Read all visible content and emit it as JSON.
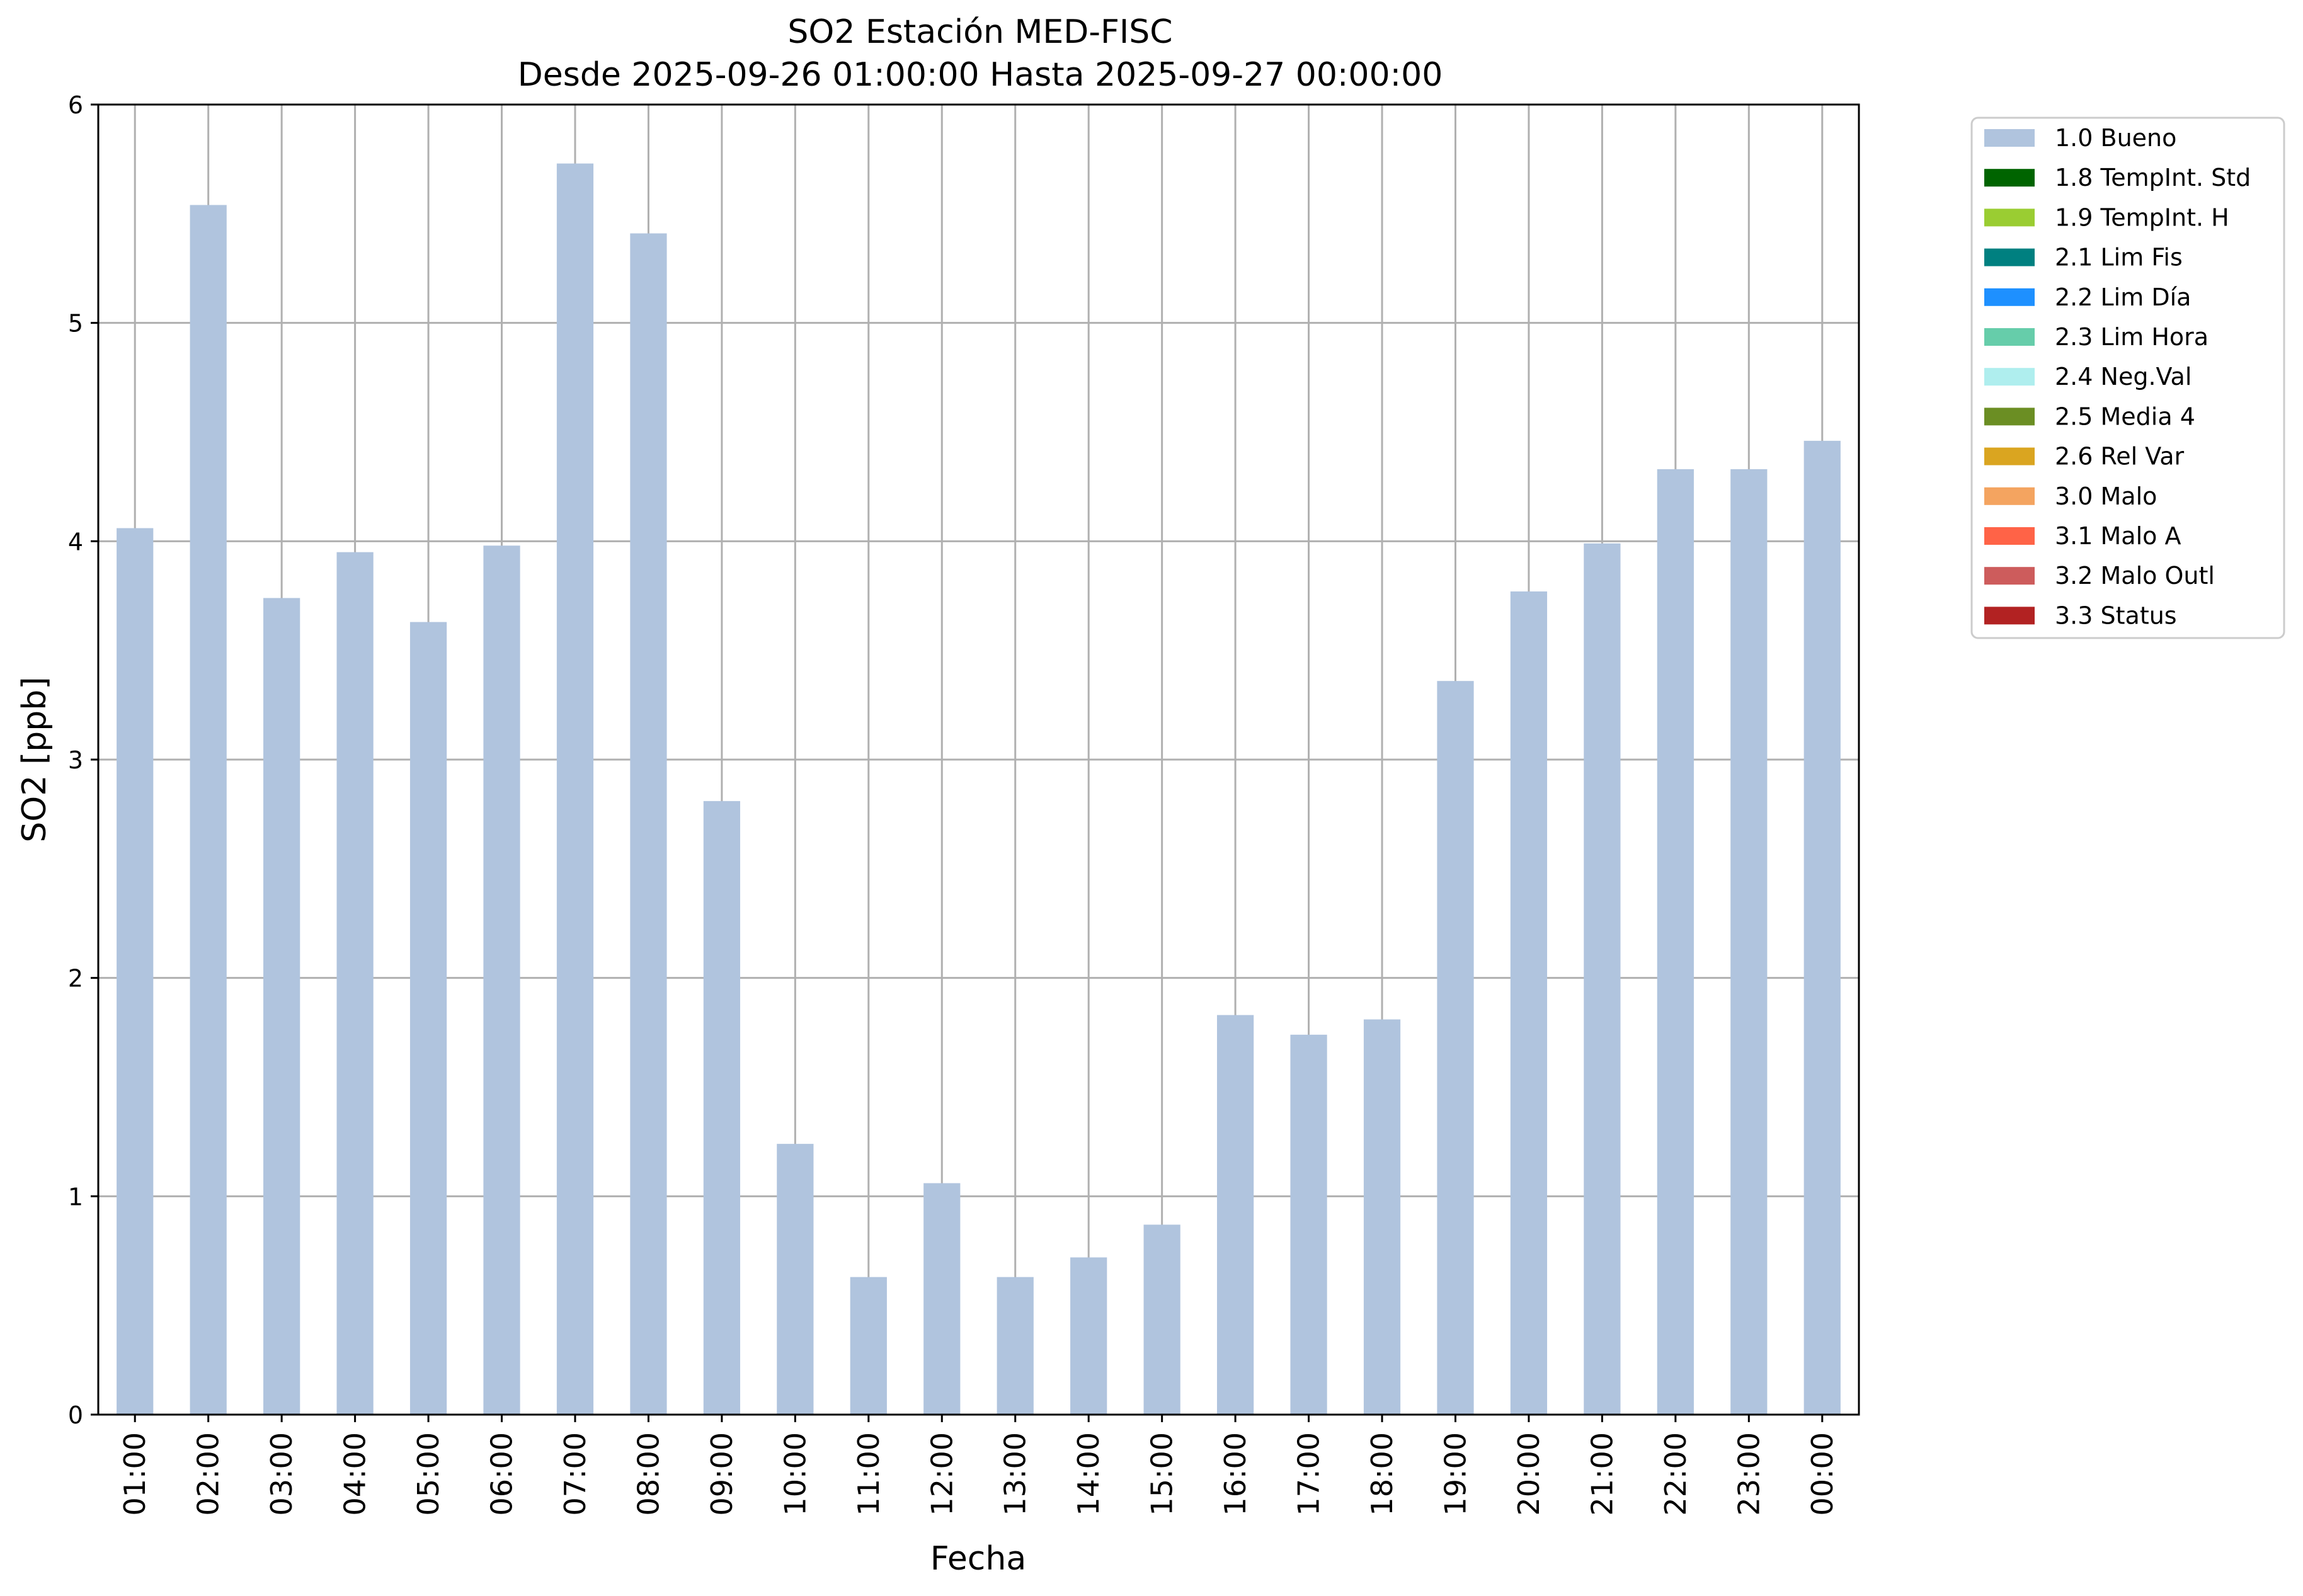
{
  "chart_data": {
    "type": "bar",
    "title": "SO2 Estación MED-FISC",
    "subtitle": "Desde 2025-09-26 01:00:00 Hasta 2025-09-27 00:00:00",
    "xlabel": "Fecha",
    "ylabel": "SO2 [ppb]",
    "ylim": [
      0,
      6
    ],
    "yticks": [
      "0",
      "1",
      "2",
      "3",
      "4",
      "5",
      "6"
    ],
    "grid": true,
    "legend_position": "outside top-right",
    "categories": [
      "01:00",
      "02:00",
      "03:00",
      "04:00",
      "05:00",
      "06:00",
      "07:00",
      "08:00",
      "09:00",
      "10:00",
      "11:00",
      "12:00",
      "13:00",
      "14:00",
      "15:00",
      "16:00",
      "17:00",
      "18:00",
      "19:00",
      "20:00",
      "21:00",
      "22:00",
      "23:00",
      "00:00"
    ],
    "series": [
      {
        "name": "1.0 Bueno",
        "color": "#b0c4de",
        "values": [
          4.06,
          5.54,
          3.74,
          3.95,
          3.63,
          3.98,
          5.73,
          5.41,
          2.81,
          1.24,
          0.63,
          1.06,
          0.63,
          0.72,
          0.87,
          1.83,
          1.74,
          1.81,
          3.36,
          3.77,
          3.99,
          4.33,
          4.33,
          4.46
        ]
      }
    ],
    "legend": [
      {
        "label": "1.0 Bueno",
        "color": "#b0c4de"
      },
      {
        "label": "1.8 TempInt. Std",
        "color": "#006400"
      },
      {
        "label": "1.9 TempInt. H",
        "color": "#9acd32"
      },
      {
        "label": "2.1 Lim Fis",
        "color": "#008080"
      },
      {
        "label": "2.2 Lim Día",
        "color": "#1e90ff"
      },
      {
        "label": "2.3 Lim Hora",
        "color": "#66cdaa"
      },
      {
        "label": "2.4 Neg.Val",
        "color": "#afeeee"
      },
      {
        "label": "2.5 Media 4",
        "color": "#6b8e23"
      },
      {
        "label": "2.6 Rel Var",
        "color": "#daa520"
      },
      {
        "label": "3.0 Malo",
        "color": "#f4a460"
      },
      {
        "label": "3.1 Malo A",
        "color": "#ff6347"
      },
      {
        "label": "3.2 Malo Outl",
        "color": "#cd5c5c"
      },
      {
        "label": "3.3 Status",
        "color": "#b22222"
      }
    ]
  }
}
